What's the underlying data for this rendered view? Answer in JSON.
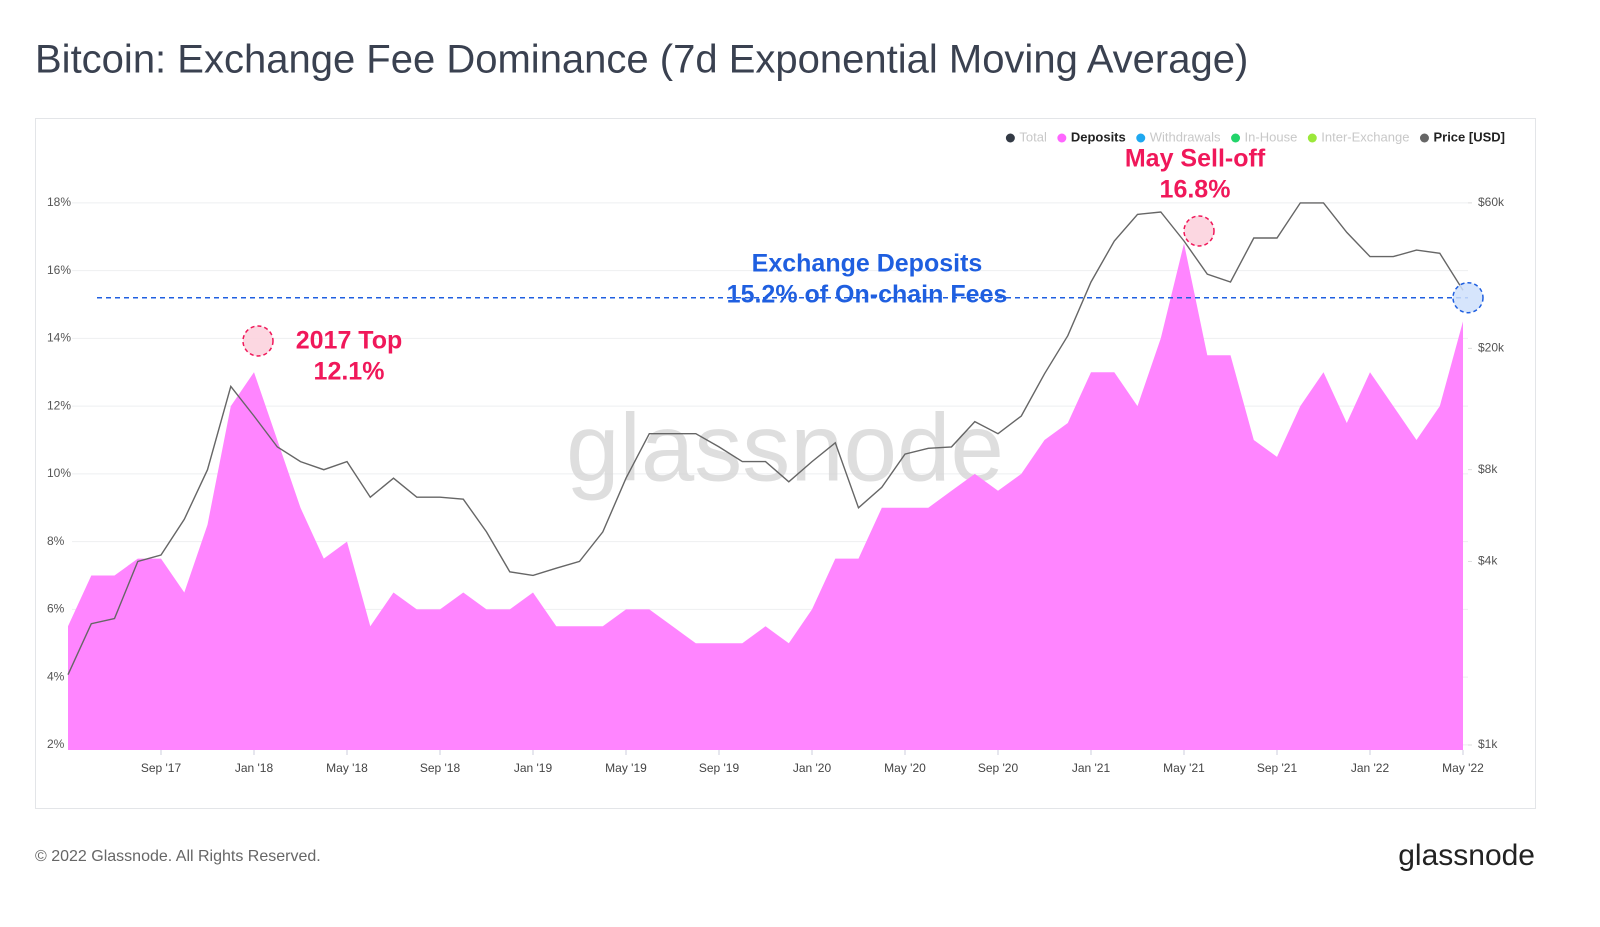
{
  "chart_data": {
    "type": "area-line",
    "title": "Bitcoin: Exchange Fee Dominance (7d Exponential Moving Average)",
    "watermark": "glassnode",
    "footer": "© 2022 Glassnode. All Rights Reserved.",
    "brand": "glassnode",
    "x": [
      "2017-05",
      "2017-06",
      "2017-07",
      "2017-08",
      "2017-09",
      "2017-10",
      "2017-11",
      "2017-12",
      "2018-01",
      "2018-02",
      "2018-03",
      "2018-04",
      "2018-05",
      "2018-06",
      "2018-07",
      "2018-08",
      "2018-09",
      "2018-10",
      "2018-11",
      "2018-12",
      "2019-01",
      "2019-02",
      "2019-03",
      "2019-04",
      "2019-05",
      "2019-06",
      "2019-07",
      "2019-08",
      "2019-09",
      "2019-10",
      "2019-11",
      "2019-12",
      "2020-01",
      "2020-02",
      "2020-03",
      "2020-04",
      "2020-05",
      "2020-06",
      "2020-07",
      "2020-08",
      "2020-09",
      "2020-10",
      "2020-11",
      "2020-12",
      "2021-01",
      "2021-02",
      "2021-03",
      "2021-04",
      "2021-05",
      "2021-06",
      "2021-07",
      "2021-08",
      "2021-09",
      "2021-10",
      "2021-11",
      "2021-12",
      "2022-01",
      "2022-02",
      "2022-03",
      "2022-04",
      "2022-05"
    ],
    "xlim": [
      "2017-05",
      "2022-05"
    ],
    "xticks": [
      {
        "value": "2017-09",
        "label": "Sep '17"
      },
      {
        "value": "2018-01",
        "label": "Jan '18"
      },
      {
        "value": "2018-05",
        "label": "May '18"
      },
      {
        "value": "2018-09",
        "label": "Sep '18"
      },
      {
        "value": "2019-01",
        "label": "Jan '19"
      },
      {
        "value": "2019-05",
        "label": "May '19"
      },
      {
        "value": "2019-09",
        "label": "Sep '19"
      },
      {
        "value": "2020-01",
        "label": "Jan '20"
      },
      {
        "value": "2020-05",
        "label": "May '20"
      },
      {
        "value": "2020-09",
        "label": "Sep '20"
      },
      {
        "value": "2021-01",
        "label": "Jan '21"
      },
      {
        "value": "2021-05",
        "label": "May '21"
      },
      {
        "value": "2021-09",
        "label": "Sep '21"
      },
      {
        "value": "2022-01",
        "label": "Jan '22"
      },
      {
        "value": "2022-05",
        "label": "May '22"
      }
    ],
    "ylim": [
      1.85,
      19.5
    ],
    "yticks": [
      {
        "value": 2,
        "label": "2%"
      },
      {
        "value": 4,
        "label": "4%"
      },
      {
        "value": 6,
        "label": "6%"
      },
      {
        "value": 8,
        "label": "8%"
      },
      {
        "value": 10,
        "label": "10%"
      },
      {
        "value": 12,
        "label": "12%"
      },
      {
        "value": 14,
        "label": "14%"
      },
      {
        "value": 16,
        "label": "16%"
      },
      {
        "value": 18,
        "label": "18%"
      }
    ],
    "y2lim": [
      963,
      88100
    ],
    "y2scale": "log",
    "y2ticks": [
      {
        "value": 1000,
        "label": "$1k"
      },
      {
        "value": 4000,
        "label": "$4k"
      },
      {
        "value": 8000,
        "label": "$8k"
      },
      {
        "value": 20000,
        "label": "$20k"
      },
      {
        "value": 60000,
        "label": "$60k"
      }
    ],
    "grid": true,
    "series": [
      {
        "name": "Deposits",
        "color": "#ff85ff",
        "kind": "area",
        "values": [
          5.5,
          7.0,
          7.0,
          7.5,
          7.5,
          6.5,
          8.5,
          12.0,
          13.0,
          11.0,
          9.0,
          7.5,
          8.0,
          5.5,
          6.5,
          6.0,
          6.0,
          6.5,
          6.0,
          6.0,
          6.5,
          5.5,
          5.5,
          5.5,
          6.0,
          6.0,
          5.5,
          5.0,
          5.0,
          5.0,
          5.5,
          5.0,
          6.0,
          7.5,
          7.5,
          9.0,
          9.0,
          9.0,
          9.5,
          10.0,
          9.5,
          10.0,
          11.0,
          11.5,
          13.0,
          13.0,
          12.0,
          14.0,
          16.8,
          13.5,
          13.5,
          11.0,
          10.5,
          12.0,
          13.0,
          11.5,
          13.0,
          12.0,
          11.0,
          12.0,
          14.5
        ]
      },
      {
        "name": "Price [USD]",
        "color": "#666666",
        "kind": "line",
        "axis": "y2",
        "values": [
          1700,
          2500,
          2600,
          4000,
          4200,
          5500,
          8000,
          15000,
          12000,
          9500,
          8500,
          8000,
          8500,
          6500,
          7500,
          6500,
          6500,
          6400,
          5000,
          3700,
          3600,
          3800,
          4000,
          5000,
          7500,
          10500,
          10500,
          10500,
          9500,
          8500,
          8500,
          7300,
          8500,
          9800,
          6000,
          7000,
          9000,
          9400,
          9500,
          11500,
          10500,
          12000,
          16500,
          22000,
          33000,
          45000,
          55000,
          56000,
          45000,
          35000,
          33000,
          46000,
          46000,
          60000,
          60000,
          48000,
          40000,
          40000,
          42000,
          41000,
          31000
        ]
      }
    ],
    "legend": [
      {
        "name": "Total",
        "color": "#333a45",
        "active": false
      },
      {
        "name": "Deposits",
        "color": "#ff66ff",
        "active": true
      },
      {
        "name": "Withdrawals",
        "color": "#1fa8f0",
        "active": false
      },
      {
        "name": "In-House",
        "color": "#22d46a",
        "active": false
      },
      {
        "name": "Inter-Exchange",
        "color": "#9be83a",
        "active": false
      },
      {
        "name": "Price [USD]",
        "color": "#666666",
        "active": true
      }
    ],
    "reference_line": {
      "value": 15.2,
      "color": "#1f5fe0"
    },
    "annotations": [
      {
        "lines": [
          "2017 Top",
          "12.1%"
        ],
        "color": "#f0185a"
      },
      {
        "lines": [
          "May Sell-off",
          "16.8%"
        ],
        "color": "#f0185a"
      },
      {
        "lines": [
          "Exchange Deposits",
          "15.2% of On-chain Fees"
        ],
        "color": "#1f5fe0"
      }
    ]
  }
}
